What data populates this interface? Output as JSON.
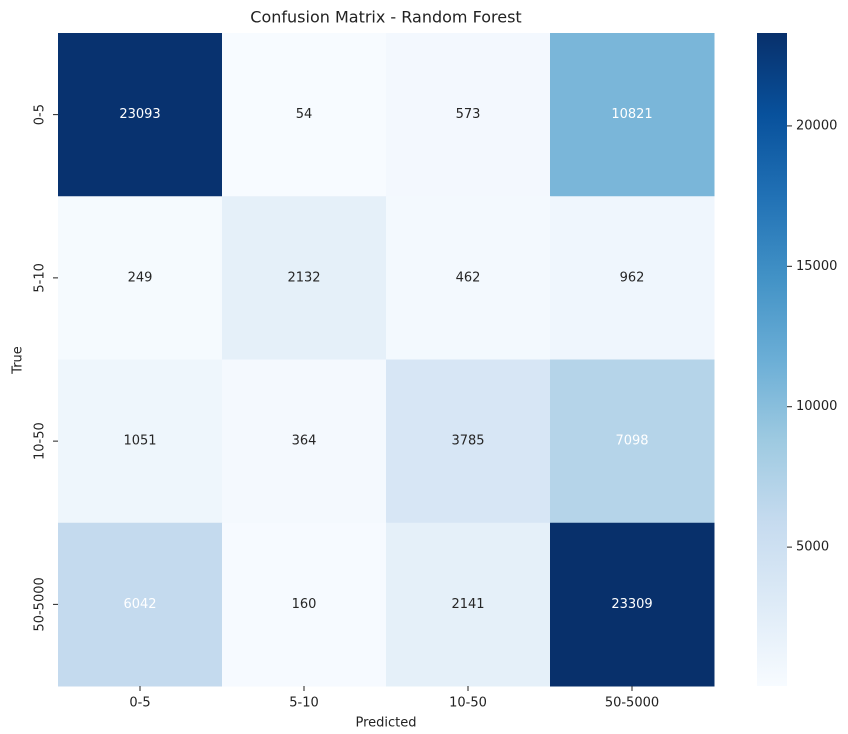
{
  "chart_data": {
    "type": "heatmap",
    "title": "Confusion Matrix - Random Forest",
    "x_label": "Predicted",
    "y_label": "True",
    "x_categories": [
      "0-5",
      "5-10",
      "10-50",
      "50-5000"
    ],
    "y_categories": [
      "0-5",
      "5-10",
      "10-50",
      "50-5000"
    ],
    "values": [
      [
        23093,
        54,
        573,
        10821
      ],
      [
        249,
        2132,
        462,
        962
      ],
      [
        1051,
        364,
        3785,
        7098
      ],
      [
        6042,
        160,
        2141,
        23309
      ]
    ],
    "colormap": "Blues",
    "colorbar_lim": [
      54,
      23309
    ],
    "colorbar_ticks": [
      5000,
      10000,
      15000,
      20000
    ]
  }
}
